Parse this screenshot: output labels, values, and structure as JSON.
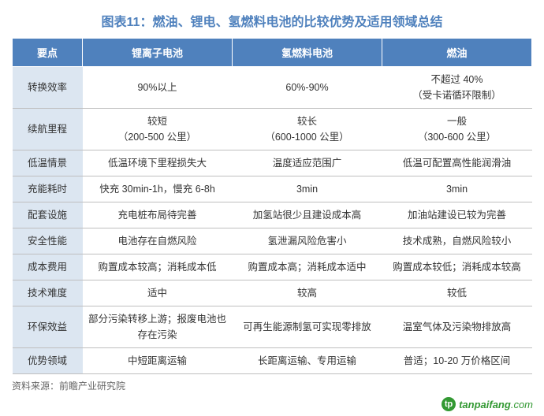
{
  "title": "图表11：燃油、锂电、氢燃料电池的比较优势及适用领域总结",
  "columns": {
    "key": "要点",
    "c1": "锂离子电池",
    "c2": "氢燃料电池",
    "c3": "燃油"
  },
  "rows": [
    {
      "label": "转换效率",
      "c1": "90%以上",
      "c2": "60%-90%",
      "c3": "不超过 40%\n（受卡诺循环限制）"
    },
    {
      "label": "续航里程",
      "c1": "较短\n（200-500 公里）",
      "c2": "较长\n（600-1000 公里）",
      "c3": "一般\n（300-600 公里）"
    },
    {
      "label": "低温情景",
      "c1": "低温环境下里程损失大",
      "c2": "温度适应范围广",
      "c3": "低温可配置高性能润滑油"
    },
    {
      "label": "充能耗时",
      "c1": "快充 30min-1h，慢充 6-8h",
      "c2": "3min",
      "c3": "3min"
    },
    {
      "label": "配套设施",
      "c1": "充电桩布局待完善",
      "c2": "加氢站很少且建设成本高",
      "c3": "加油站建设已较为完善"
    },
    {
      "label": "安全性能",
      "c1": "电池存在自燃风险",
      "c2": "氢泄漏风险危害小",
      "c3": "技术成熟，自燃风险较小"
    },
    {
      "label": "成本费用",
      "c1": "购置成本较高；消耗成本低",
      "c2": "购置成本高；消耗成本适中",
      "c3": "购置成本较低；消耗成本较高"
    },
    {
      "label": "技术难度",
      "c1": "适中",
      "c2": "较高",
      "c3": "较低"
    },
    {
      "label": "环保效益",
      "c1": "部分污染转移上游；报废电池也存在污染",
      "c2": "可再生能源制氢可实现零排放",
      "c3": "温室气体及污染物排放高"
    },
    {
      "label": "优势领域",
      "c1": "中短距离运输",
      "c2": "长距离运输、专用运输",
      "c3": "普适；10-20 万价格区间"
    }
  ],
  "source_label": "资料来源：前瞻产业研究院",
  "footer_logo_letter": "tp",
  "footer_domain_bold": "tanpaifang",
  "footer_domain_tld": ".com"
}
